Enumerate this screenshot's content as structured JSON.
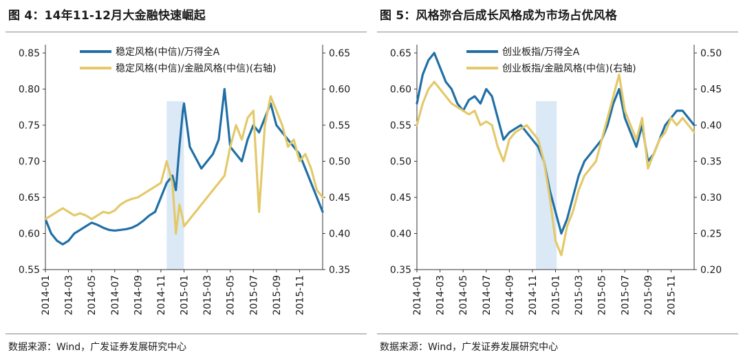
{
  "panels": [
    {
      "title": "图 4：14年11-12月大金融快速崛起",
      "source": "数据来源：Wind，广发证券发展研究中心"
    },
    {
      "title": "图 5：风格弥合后成长风格成为市场占优风格",
      "source": "数据来源：Wind，广发证券发展研究中心"
    }
  ],
  "chart_data": [
    {
      "type": "line",
      "colors": {
        "left": "#1f6fa6",
        "right": "#e3c96a",
        "highlight": "#dbe9f6"
      },
      "x_ticks": [
        "2014-01",
        "2014-03",
        "2014-05",
        "2014-07",
        "2014-09",
        "2014-11",
        "2015-01",
        "2015-03",
        "2015-05",
        "2015-07",
        "2015-09",
        "2015-11"
      ],
      "y_left": {
        "ticks": [
          0.55,
          0.6,
          0.65,
          0.7,
          0.75,
          0.8,
          0.85
        ],
        "ylim": [
          0.55,
          0.85
        ]
      },
      "y_right": {
        "ticks": [
          0.35,
          0.4,
          0.45,
          0.5,
          0.55,
          0.6,
          0.65
        ],
        "ylim": [
          0.35,
          0.65
        ]
      },
      "highlight": {
        "from": 10.5,
        "to": 12.0
      },
      "legend_position": "top",
      "series": [
        {
          "name": "稳定风格(中信)/万得全A",
          "axis": "left",
          "x": [
            0,
            0.5,
            1,
            1.5,
            2,
            2.5,
            3,
            3.5,
            4,
            4.5,
            5,
            5.5,
            6,
            6.5,
            7,
            7.5,
            8,
            8.5,
            9,
            9.5,
            10,
            10.5,
            11,
            11.3,
            11.6,
            11.9,
            12,
            12.5,
            13,
            13.5,
            14,
            14.5,
            15,
            15.5,
            16,
            16.5,
            17,
            17.5,
            18,
            18.5,
            19,
            19.5,
            20,
            20.5,
            21,
            21.5,
            22,
            22.5,
            23,
            23.5,
            24
          ],
          "values": [
            0.62,
            0.6,
            0.59,
            0.585,
            0.59,
            0.6,
            0.605,
            0.61,
            0.615,
            0.612,
            0.608,
            0.605,
            0.604,
            0.605,
            0.606,
            0.608,
            0.612,
            0.618,
            0.625,
            0.63,
            0.65,
            0.67,
            0.68,
            0.66,
            0.72,
            0.77,
            0.78,
            0.72,
            0.705,
            0.69,
            0.7,
            0.71,
            0.73,
            0.8,
            0.72,
            0.71,
            0.7,
            0.73,
            0.75,
            0.74,
            0.76,
            0.78,
            0.75,
            0.74,
            0.73,
            0.72,
            0.71,
            0.69,
            0.67,
            0.65,
            0.63
          ]
        },
        {
          "name": "稳定风格(中信)/金融风格(中信)(右轴)",
          "axis": "right",
          "x": [
            0,
            0.5,
            1,
            1.5,
            2,
            2.5,
            3,
            3.5,
            4,
            4.5,
            5,
            5.5,
            6,
            6.5,
            7,
            7.5,
            8,
            8.5,
            9,
            9.5,
            10,
            10.5,
            11,
            11.3,
            11.6,
            11.9,
            12,
            12.5,
            13,
            13.5,
            14,
            14.5,
            15,
            15.5,
            16,
            16.5,
            17,
            17.5,
            18,
            18.5,
            19,
            19.5,
            20,
            20.5,
            21,
            21.5,
            22,
            22.5,
            23,
            23.5,
            24
          ],
          "values": [
            0.42,
            0.425,
            0.43,
            0.435,
            0.43,
            0.425,
            0.428,
            0.425,
            0.42,
            0.425,
            0.43,
            0.428,
            0.432,
            0.44,
            0.445,
            0.448,
            0.45,
            0.455,
            0.46,
            0.465,
            0.47,
            0.5,
            0.47,
            0.4,
            0.44,
            0.42,
            0.41,
            0.42,
            0.43,
            0.44,
            0.45,
            0.46,
            0.47,
            0.48,
            0.52,
            0.55,
            0.53,
            0.56,
            0.57,
            0.43,
            0.55,
            0.59,
            0.57,
            0.55,
            0.52,
            0.53,
            0.5,
            0.51,
            0.49,
            0.46,
            0.45
          ]
        }
      ]
    },
    {
      "type": "line",
      "colors": {
        "left": "#1f6fa6",
        "right": "#e3c96a",
        "highlight": "#dbe9f6"
      },
      "x_ticks": [
        "2014-01",
        "2014-03",
        "2014-05",
        "2014-07",
        "2014-09",
        "2014-11",
        "2015-01",
        "2015-03",
        "2015-05",
        "2015-07",
        "2015-09",
        "2015-11"
      ],
      "y_left": {
        "ticks": [
          0.35,
          0.4,
          0.45,
          0.5,
          0.55,
          0.6,
          0.65
        ],
        "ylim": [
          0.35,
          0.65
        ]
      },
      "y_right": {
        "ticks": [
          0.2,
          0.25,
          0.3,
          0.35,
          0.4,
          0.45,
          0.5
        ],
        "ylim": [
          0.2,
          0.5
        ]
      },
      "highlight": {
        "from": 10.3,
        "to": 12.1
      },
      "legend_position": "top",
      "series": [
        {
          "name": "创业板指/万得全A",
          "axis": "left",
          "x": [
            0,
            0.5,
            1,
            1.5,
            2,
            2.5,
            3,
            3.5,
            4,
            4.5,
            5,
            5.5,
            6,
            6.5,
            7,
            7.5,
            8,
            8.5,
            9,
            9.5,
            10,
            10.5,
            11,
            11.5,
            12,
            12.5,
            13,
            13.5,
            14,
            14.5,
            15,
            15.5,
            16,
            16.5,
            17,
            17.5,
            18,
            18.5,
            19,
            19.5,
            20,
            20.5,
            21,
            21.5,
            22,
            22.5,
            23,
            23.5,
            24
          ],
          "values": [
            0.58,
            0.62,
            0.64,
            0.65,
            0.63,
            0.61,
            0.6,
            0.58,
            0.57,
            0.585,
            0.59,
            0.58,
            0.6,
            0.59,
            0.56,
            0.53,
            0.54,
            0.545,
            0.55,
            0.54,
            0.53,
            0.52,
            0.5,
            0.46,
            0.43,
            0.4,
            0.42,
            0.45,
            0.48,
            0.5,
            0.51,
            0.52,
            0.53,
            0.55,
            0.58,
            0.6,
            0.56,
            0.54,
            0.52,
            0.55,
            0.5,
            0.51,
            0.53,
            0.55,
            0.56,
            0.57,
            0.57,
            0.56,
            0.55
          ]
        },
        {
          "name": "创业板指/金融风格(中信)(右轴)",
          "axis": "right",
          "x": [
            0,
            0.5,
            1,
            1.5,
            2,
            2.5,
            3,
            3.5,
            4,
            4.5,
            5,
            5.5,
            6,
            6.5,
            7,
            7.5,
            8,
            8.5,
            9,
            9.5,
            10,
            10.5,
            11,
            11.5,
            12,
            12.5,
            13,
            13.5,
            14,
            14.5,
            15,
            15.5,
            16,
            16.5,
            17,
            17.5,
            18,
            18.5,
            19,
            19.5,
            20,
            20.5,
            21,
            21.5,
            22,
            22.5,
            23,
            23.5,
            24
          ],
          "values": [
            0.4,
            0.43,
            0.45,
            0.46,
            0.45,
            0.44,
            0.43,
            0.425,
            0.42,
            0.415,
            0.42,
            0.4,
            0.405,
            0.4,
            0.37,
            0.35,
            0.38,
            0.39,
            0.395,
            0.4,
            0.39,
            0.38,
            0.35,
            0.3,
            0.24,
            0.22,
            0.26,
            0.28,
            0.31,
            0.33,
            0.34,
            0.35,
            0.38,
            0.41,
            0.44,
            0.47,
            0.42,
            0.4,
            0.38,
            0.41,
            0.34,
            0.36,
            0.38,
            0.39,
            0.41,
            0.4,
            0.41,
            0.4,
            0.39
          ]
        }
      ]
    }
  ]
}
